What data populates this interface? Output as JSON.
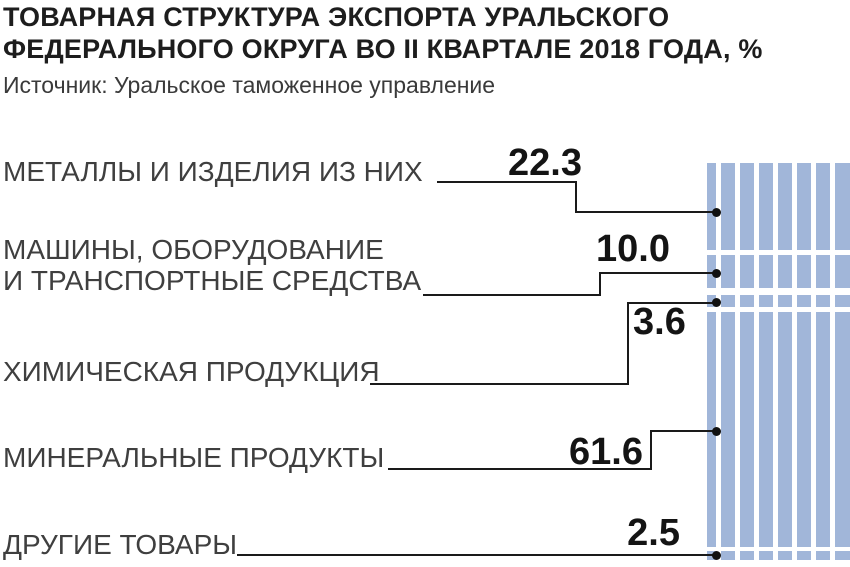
{
  "header": {
    "line1": "ТОВАРНАЯ СТРУКТУРА ЭКСПОРТА УРАЛЬСКОГО",
    "line2": "ФЕДЕРАЛЬНОГО ОКРУГА ВО II КВАРТАЛЕ 2018 ГОДА, %"
  },
  "source": "Источник: Уральское таможенное управление",
  "chart_data": {
    "type": "bar",
    "subtype": "stacked-percentage-column-with-leader-lines",
    "title": "ТОВАРНАЯ СТРУКТУРА ЭКСПОРТА УРАЛЬСКОГО ФЕДЕРАЛЬНОГО ОКРУГА ВО II КВАРТАЛЕ 2018 ГОДА, %",
    "source": "Источник: Уральское таможенное управление",
    "unit": "%",
    "categories": [
      "МЕТАЛЛЫ И ИЗДЕЛИЯ ИЗ НИХ",
      "МАШИНЫ, ОБОРУДОВАНИЕ И ТРАНСПОРТНЫЕ СРЕДСТВА",
      "ХИМИЧЕСКАЯ ПРОДУКЦИЯ",
      "МИНЕРАЛЬНЫЕ ПРОДУКТЫ",
      "ДРУГИЕ ТОВАРЫ"
    ],
    "values": [
      22.3,
      10.0,
      3.6,
      61.6,
      2.5
    ],
    "total": 100,
    "layout": {
      "bar_orientation": "vertical",
      "bar_side": "right",
      "labels_side": "left",
      "grid": false,
      "legend": false
    },
    "colors": {
      "bar_fill": "#a1b6d9",
      "bar_stripe_gap": "#ffffff",
      "leader_line": "#1a1a1a",
      "dot": "#111111",
      "title_text": "#1d1d1d",
      "label_text": "#3f3f3f"
    }
  },
  "items": [
    {
      "label_lines": [
        "МЕТАЛЛЫ И ИЗДЕЛИЯ ИЗ НИХ"
      ],
      "value": "22.3"
    },
    {
      "label_lines": [
        "МАШИНЫ, ОБОРУДОВАНИЕ",
        "И ТРАНСПОРТНЫЕ СРЕДСТВА"
      ],
      "value": "10.0"
    },
    {
      "label_lines": [
        "ХИМИЧЕСКАЯ ПРОДУКЦИЯ"
      ],
      "value": "3.6"
    },
    {
      "label_lines": [
        "МИНЕРАЛЬНЫЕ ПРОДУКТЫ"
      ],
      "value": "61.6"
    },
    {
      "label_lines": [
        "ДРУГИЕ ТОВАРЫ"
      ],
      "value": "2.5"
    }
  ]
}
